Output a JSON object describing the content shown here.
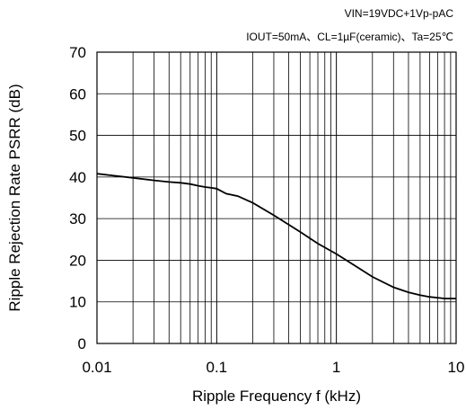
{
  "conditions": {
    "line1": "VIN=19VDC+1Vp-pAC",
    "line2": "IOUT=50mA、CL=1µF(ceramic)、Ta=25℃"
  },
  "chart_data": {
    "type": "line",
    "xscale": "log",
    "xlabel": "Ripple Frequency  f  (kHz)",
    "ylabel": "Ripple Rejection Rate  PSRR  (dB)",
    "xlim": [
      0.01,
      10
    ],
    "ylim": [
      0,
      70
    ],
    "grid": true,
    "x_tick_labels": [
      "0.01",
      "0.1",
      "1",
      "10"
    ],
    "y_tick_labels": [
      "0",
      "10",
      "20",
      "30",
      "40",
      "50",
      "60",
      "70"
    ],
    "series": [
      {
        "x": [
          0.01,
          0.015,
          0.02,
          0.03,
          0.04,
          0.05,
          0.06,
          0.07,
          0.08,
          0.09,
          0.1,
          0.12,
          0.15,
          0.2,
          0.3,
          0.5,
          0.7,
          1.0,
          1.5,
          2.0,
          3.0,
          4.0,
          5.0,
          6.0,
          7.0,
          8.0,
          10.0
        ],
        "y": [
          40.8,
          40.2,
          39.8,
          39.2,
          38.8,
          38.6,
          38.3,
          37.9,
          37.6,
          37.4,
          37.2,
          36.0,
          35.4,
          33.8,
          30.8,
          26.8,
          24.0,
          21.5,
          18.3,
          16.0,
          13.5,
          12.3,
          11.6,
          11.2,
          11.0,
          10.8,
          10.8
        ]
      }
    ]
  }
}
